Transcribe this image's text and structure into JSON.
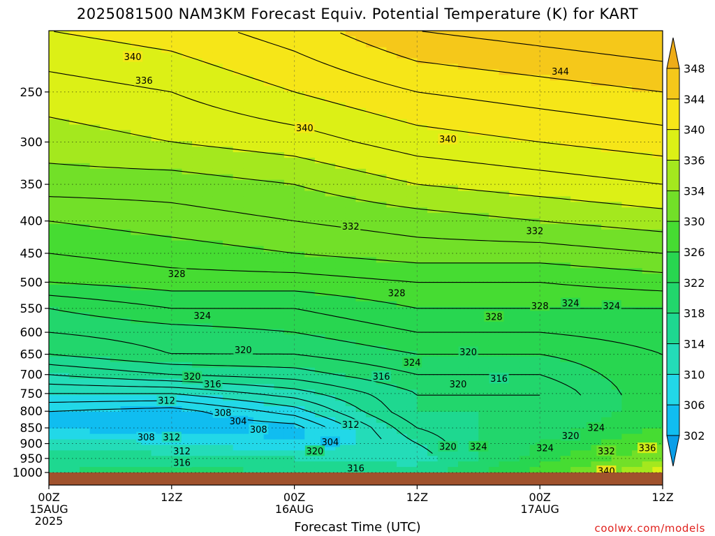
{
  "title": "2025081500 NAM3KM Forecast Equiv. Potential Temperature (K) for KART",
  "credit": "coolwx.com/models",
  "chart_data": {
    "type": "heatmap",
    "variable": "Equivalent Potential Temperature (K)",
    "xlabel": "Forecast Time (UTC)",
    "ylabel": "",
    "x_ticks": [
      {
        "hour": 0,
        "line1": "00Z",
        "line2": "15AUG",
        "line3": "2025"
      },
      {
        "hour": 12,
        "line1": "12Z",
        "line2": "",
        "line3": ""
      },
      {
        "hour": 24,
        "line1": "00Z",
        "line2": "16AUG",
        "line3": ""
      },
      {
        "hour": 36,
        "line1": "12Z",
        "line2": "",
        "line3": ""
      },
      {
        "hour": 48,
        "line1": "00Z",
        "line2": "17AUG",
        "line3": ""
      },
      {
        "hour": 60,
        "line1": "12Z",
        "line2": "",
        "line3": ""
      }
    ],
    "xlim": [
      0,
      60
    ],
    "y_ticks": [
      250,
      300,
      350,
      400,
      450,
      500,
      550,
      600,
      650,
      700,
      750,
      800,
      850,
      900,
      950,
      1000
    ],
    "ylim_hPa": [
      1000,
      200
    ],
    "y_scale": "log-pressure",
    "grid": true,
    "colorbar": {
      "placement": "right",
      "levels": [
        302,
        306,
        310,
        314,
        318,
        322,
        326,
        330,
        334,
        336,
        340,
        344,
        348
      ],
      "tick_labels": [
        "302",
        "306",
        "310",
        "314",
        "318",
        "322",
        "326",
        "330",
        "334",
        "336",
        "340",
        "344",
        "348"
      ],
      "colors": [
        "#0a9ee8",
        "#10bdf0",
        "#22d8e8",
        "#24dcb8",
        "#1ed890",
        "#22d66c",
        "#28d650",
        "#46dc32",
        "#72e028",
        "#a4e81e",
        "#dcf016",
        "#f6e618",
        "#f5c81a",
        "#eeac18"
      ]
    },
    "contour_labels": [
      {
        "text": "340",
        "hour": 8.2,
        "p": 220
      },
      {
        "text": "336",
        "hour": 9.3,
        "p": 240
      },
      {
        "text": "340",
        "hour": 25.0,
        "p": 285
      },
      {
        "text": "340",
        "hour": 39.0,
        "p": 297
      },
      {
        "text": "344",
        "hour": 50.0,
        "p": 232
      },
      {
        "text": "332",
        "hour": 29.5,
        "p": 408
      },
      {
        "text": "332",
        "hour": 47.5,
        "p": 415
      },
      {
        "text": "328",
        "hour": 12.5,
        "p": 485
      },
      {
        "text": "328",
        "hour": 34.0,
        "p": 520
      },
      {
        "text": "328",
        "hour": 43.5,
        "p": 567
      },
      {
        "text": "328",
        "hour": 48.0,
        "p": 545
      },
      {
        "text": "324",
        "hour": 15.0,
        "p": 565
      },
      {
        "text": "324",
        "hour": 51.0,
        "p": 540
      },
      {
        "text": "324",
        "hour": 55.0,
        "p": 545
      },
      {
        "text": "320",
        "hour": 19.0,
        "p": 640
      },
      {
        "text": "320",
        "hour": 41.0,
        "p": 645
      },
      {
        "text": "324",
        "hour": 35.5,
        "p": 670
      },
      {
        "text": "320",
        "hour": 14.0,
        "p": 705
      },
      {
        "text": "316",
        "hour": 16.0,
        "p": 725
      },
      {
        "text": "316",
        "hour": 32.5,
        "p": 705
      },
      {
        "text": "316",
        "hour": 44.0,
        "p": 710
      },
      {
        "text": "320",
        "hour": 40.0,
        "p": 725
      },
      {
        "text": "312",
        "hour": 11.5,
        "p": 770
      },
      {
        "text": "308",
        "hour": 17.0,
        "p": 805
      },
      {
        "text": "304",
        "hour": 18.5,
        "p": 830
      },
      {
        "text": "308",
        "hour": 20.5,
        "p": 855
      },
      {
        "text": "312",
        "hour": 29.5,
        "p": 840
      },
      {
        "text": "308",
        "hour": 9.5,
        "p": 880
      },
      {
        "text": "312",
        "hour": 12.0,
        "p": 880
      },
      {
        "text": "304",
        "hour": 27.5,
        "p": 895
      },
      {
        "text": "320",
        "hour": 26.0,
        "p": 925
      },
      {
        "text": "312",
        "hour": 13.0,
        "p": 925
      },
      {
        "text": "316",
        "hour": 13.0,
        "p": 965
      },
      {
        "text": "316",
        "hour": 30.0,
        "p": 985
      },
      {
        "text": "320",
        "hour": 39.0,
        "p": 910
      },
      {
        "text": "324",
        "hour": 42.0,
        "p": 910
      },
      {
        "text": "320",
        "hour": 51.0,
        "p": 875
      },
      {
        "text": "324",
        "hour": 53.5,
        "p": 850
      },
      {
        "text": "324",
        "hour": 48.5,
        "p": 915
      },
      {
        "text": "332",
        "hour": 54.5,
        "p": 925
      },
      {
        "text": "336",
        "hour": 58.5,
        "p": 915
      },
      {
        "text": "340",
        "hour": 54.5,
        "p": 995
      }
    ],
    "thetae_profiles": [
      {
        "hour": 0,
        "p": [
          1000,
          950,
          900,
          850,
          800,
          750,
          700,
          650,
          600,
          550,
          500,
          450,
          400,
          350,
          300,
          250,
          200
        ],
        "values": [
          318,
          316,
          312,
          305,
          306,
          310,
          314,
          318,
          320,
          322,
          326,
          328,
          330,
          333,
          335,
          337,
          340
        ]
      },
      {
        "hour": 12,
        "p": [
          1000,
          950,
          900,
          850,
          800,
          750,
          700,
          650,
          600,
          550,
          500,
          450,
          400,
          350,
          300,
          250,
          200
        ],
        "values": [
          320,
          316,
          310,
          304,
          305,
          310,
          316,
          320,
          321,
          324,
          327,
          329,
          331,
          333,
          336,
          338,
          341
        ]
      },
      {
        "hour": 24,
        "p": [
          1000,
          950,
          900,
          850,
          800,
          750,
          700,
          650,
          600,
          550,
          500,
          450,
          400,
          350,
          300,
          250,
          200
        ],
        "values": [
          318,
          314,
          306,
          305,
          309,
          313,
          317,
          320,
          322,
          324,
          327,
          330,
          332,
          334,
          337,
          340,
          343
        ]
      },
      {
        "hour": 36,
        "p": [
          1000,
          950,
          900,
          850,
          800,
          750,
          700,
          650,
          600,
          550,
          500,
          450,
          400,
          350,
          300,
          250,
          200
        ],
        "values": [
          316,
          312,
          314,
          316,
          318,
          318,
          320,
          322,
          324,
          326,
          328,
          331,
          333,
          336,
          339,
          342,
          346
        ]
      },
      {
        "hour": 48,
        "p": [
          1000,
          950,
          900,
          850,
          800,
          750,
          700,
          650,
          600,
          550,
          500,
          450,
          400,
          350,
          300,
          250,
          200
        ],
        "values": [
          328,
          324,
          322,
          320,
          318,
          318,
          320,
          322,
          324,
          326,
          328,
          331,
          334,
          337,
          340,
          343,
          347
        ]
      },
      {
        "hour": 60,
        "p": [
          1000,
          950,
          900,
          850,
          800,
          750,
          700,
          650,
          600,
          550,
          500,
          450,
          400,
          350,
          300,
          250,
          200
        ],
        "values": [
          338,
          334,
          330,
          326,
          324,
          324,
          324,
          324,
          325,
          326,
          329,
          332,
          335,
          338,
          341,
          344,
          348
        ]
      }
    ]
  }
}
